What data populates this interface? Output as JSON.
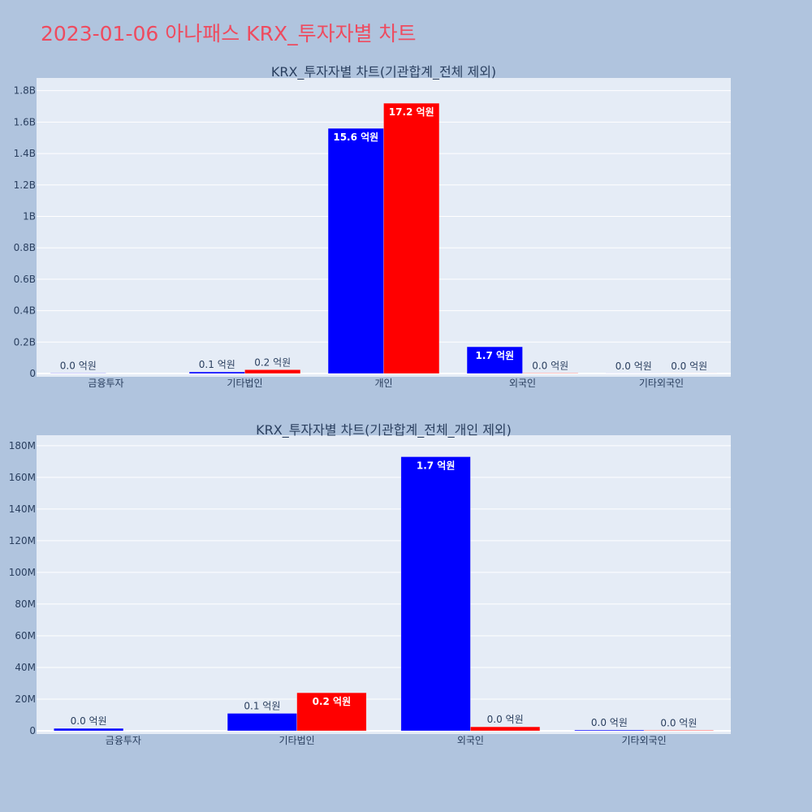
{
  "page_title": "2023-01-06 아나패스 KRX_투자자별 차트",
  "chart_data": [
    {
      "type": "bar",
      "title": "KRX_투자자별 차트(기관합계_전체 제외)",
      "categories": [
        "금융투자",
        "기타법인",
        "개인",
        "외국인",
        "기타외국인"
      ],
      "series": [
        {
          "color": "#0000ff",
          "values": [
            2000000,
            10000000,
            1560000000,
            170000000,
            500000
          ],
          "labels": [
            "0.0 억원",
            "0.1 억원",
            "15.6 억원",
            "1.7 억원",
            "0.0 억원"
          ]
        },
        {
          "color": "#ff0000",
          "values": [
            0,
            24000000,
            1720000000,
            2500000,
            300000
          ],
          "labels": [
            "",
            "0.2 억원",
            "17.2 억원",
            "0.0 억원",
            "0.0 억원"
          ]
        }
      ],
      "ylim": [
        0,
        1850000000
      ],
      "yticks": [
        0,
        200000000,
        400000000,
        600000000,
        800000000,
        1000000000,
        1200000000,
        1400000000,
        1600000000,
        1800000000
      ],
      "ytick_labels": [
        "0",
        "0.2B",
        "0.4B",
        "0.6B",
        "0.8B",
        "1B",
        "1.2B",
        "1.4B",
        "1.6B",
        "1.8B"
      ]
    },
    {
      "type": "bar",
      "title": "KRX_투자자별 차트(기관합계_전체_개인 제외)",
      "categories": [
        "금융투자",
        "기타법인",
        "외국인",
        "기타외국인"
      ],
      "series": [
        {
          "color": "#0000ff",
          "values": [
            1500000,
            11000000,
            173000000,
            500000
          ],
          "labels": [
            "0.0 억원",
            "0.1 억원",
            "1.7 억원",
            "0.0 억원"
          ]
        },
        {
          "color": "#ff0000",
          "values": [
            0,
            24000000,
            2500000,
            300000
          ],
          "labels": [
            "",
            "0.2 억원",
            "0.0 억원",
            "0.0 억원"
          ]
        }
      ],
      "ylim": [
        0,
        183000000
      ],
      "yticks": [
        0,
        20000000,
        40000000,
        60000000,
        80000000,
        100000000,
        120000000,
        140000000,
        160000000,
        180000000
      ],
      "ytick_labels": [
        "0",
        "20M",
        "40M",
        "60M",
        "80M",
        "100M",
        "120M",
        "140M",
        "160M",
        "180M"
      ]
    }
  ]
}
